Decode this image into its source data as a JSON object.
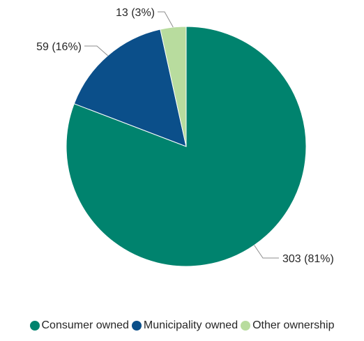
{
  "chart_data": {
    "type": "pie",
    "slices": [
      {
        "name": "Consumer owned",
        "value": 303,
        "label": "303 (81%)",
        "color": "#00836e"
      },
      {
        "name": "Municipality owned",
        "value": 59,
        "label": "59 (16%)",
        "color": "#0b4f8a"
      },
      {
        "name": "Other ownership",
        "value": 13,
        "label": "13 (3%)",
        "color": "#b8dc9e"
      }
    ],
    "legend_position": "bottom"
  }
}
